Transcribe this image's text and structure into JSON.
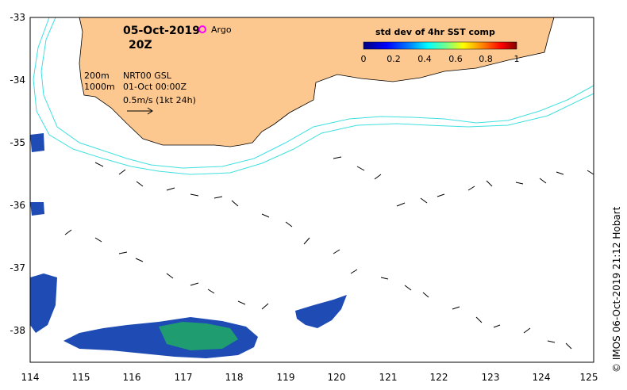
{
  "title": {
    "date": "05-Oct-2019",
    "time": "20Z",
    "argo_label": "Argo"
  },
  "info": {
    "depth1": "200m",
    "depth2": "1000m",
    "product": "NRT00 GSL",
    "ref_date": "01-Oct 00:00Z",
    "scale_text": "0.5m/s (1kt 24h)"
  },
  "colorbar": {
    "title": "std dev of 4hr SST comp",
    "tick_labels": [
      "0",
      "0.2",
      "0.4",
      "0.6",
      "0.8",
      "1"
    ],
    "colors": [
      "#00007f",
      "#0000ff",
      "#0080ff",
      "#00ffff",
      "#80ff80",
      "#ffff00",
      "#ff8000",
      "#ff0000",
      "#7f0000"
    ]
  },
  "axes": {
    "x_labels": [
      "114",
      "115",
      "116",
      "117",
      "118",
      "119",
      "120",
      "121",
      "122",
      "123",
      "124",
      "125"
    ],
    "y_labels": [
      "-33",
      "-34",
      "-35",
      "-36",
      "-37",
      "-38"
    ],
    "x_range": [
      114,
      125
    ],
    "y_range": [
      -38.5,
      -33
    ]
  },
  "colors": {
    "land": "#fcc890",
    "isobath": "#40e0e0",
    "argo": "#ff00ff"
  },
  "credit": "© IMOS 06-Oct-2019 21:12 Hobart"
}
